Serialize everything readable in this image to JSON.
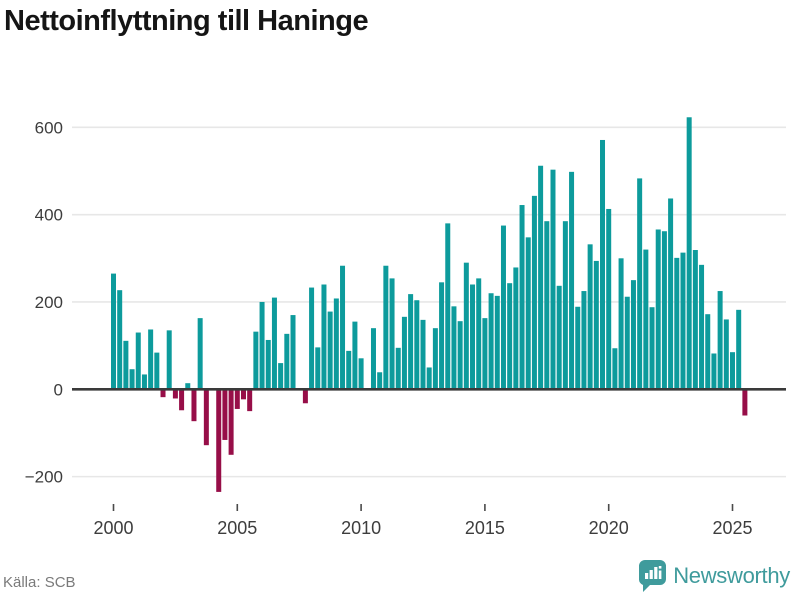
{
  "header": {
    "title": "Nettoinflyttning till Haninge"
  },
  "footer": {
    "source": "Källa: SCB",
    "brand": "Newsworthy"
  },
  "colors": {
    "positive": "#0d9b9c",
    "negative": "#970e48",
    "grid": "#e7e7e7",
    "axis": "#3a3a3a",
    "brand_teal": "#3f9b9c",
    "tick_text": "#3d3d3d",
    "source_text": "#7a7a7a",
    "title_text": "#151515"
  },
  "chart_data": {
    "type": "bar",
    "title": "Nettoinflyttning till Haninge",
    "xlabel": "",
    "ylabel": "",
    "grid": "horizontal",
    "legend": "none",
    "ylim": [
      -260,
      660
    ],
    "y_tick_values": [
      600,
      400,
      200,
      0,
      -200
    ],
    "y_tick_labels": [
      "600",
      "400",
      "200",
      "0",
      "−200"
    ],
    "x_tick_years": [
      "2000",
      "2005",
      "2010",
      "2015",
      "2020",
      "2025"
    ],
    "quarters": [
      "2000Q1",
      "2000Q2",
      "2000Q3",
      "2000Q4",
      "2001Q1",
      "2001Q2",
      "2001Q3",
      "2001Q4",
      "2002Q1",
      "2002Q2",
      "2002Q3",
      "2002Q4",
      "2003Q1",
      "2003Q2",
      "2003Q3",
      "2003Q4",
      "2004Q1",
      "2004Q2",
      "2004Q3",
      "2004Q4",
      "2005Q1",
      "2005Q2",
      "2005Q3",
      "2005Q4",
      "2006Q1",
      "2006Q2",
      "2006Q3",
      "2006Q4",
      "2007Q1",
      "2007Q2",
      "2007Q3",
      "2007Q4",
      "2008Q1",
      "2008Q2",
      "2008Q3",
      "2008Q4",
      "2009Q1",
      "2009Q2",
      "2009Q3",
      "2009Q4",
      "2010Q1",
      "2010Q2",
      "2010Q3",
      "2010Q4",
      "2011Q1",
      "2011Q2",
      "2011Q3",
      "2011Q4",
      "2012Q1",
      "2012Q2",
      "2012Q3",
      "2012Q4",
      "2013Q1",
      "2013Q2",
      "2013Q3",
      "2013Q4",
      "2014Q1",
      "2014Q2",
      "2014Q3",
      "2014Q4",
      "2015Q1",
      "2015Q2",
      "2015Q3",
      "2015Q4",
      "2016Q1",
      "2016Q2",
      "2016Q3",
      "2016Q4",
      "2017Q1",
      "2017Q2",
      "2017Q3",
      "2017Q4",
      "2018Q1",
      "2018Q2",
      "2018Q3",
      "2018Q4",
      "2019Q1",
      "2019Q2",
      "2019Q3",
      "2019Q4",
      "2020Q1",
      "2020Q2",
      "2020Q3",
      "2020Q4",
      "2021Q1",
      "2021Q2",
      "2021Q3",
      "2021Q4",
      "2022Q1",
      "2022Q2",
      "2022Q3",
      "2022Q4",
      "2023Q1",
      "2023Q2",
      "2023Q3",
      "2023Q4",
      "2024Q1",
      "2024Q2",
      "2024Q3",
      "2024Q4",
      "2025Q1",
      "2025Q2",
      "2025Q3"
    ],
    "values": [
      265,
      227,
      111,
      46,
      130,
      34,
      137,
      84,
      -18,
      135,
      -21,
      -48,
      14,
      -73,
      163,
      -128,
      0,
      -235,
      -116,
      -150,
      -45,
      -23,
      -50,
      132,
      200,
      113,
      210,
      60,
      127,
      170,
      0,
      -32,
      233,
      96,
      240,
      178,
      208,
      283,
      88,
      155,
      71,
      0,
      140,
      39,
      283,
      254,
      95,
      166,
      218,
      204,
      159,
      50,
      140,
      245,
      380,
      190,
      156,
      290,
      240,
      254,
      163,
      220,
      214,
      375,
      243,
      279,
      422,
      348,
      443,
      512,
      385,
      503,
      237,
      385,
      498,
      189,
      225,
      332,
      294,
      571,
      413,
      94,
      300,
      212,
      250,
      483,
      320,
      188,
      366,
      362,
      437,
      301,
      313,
      623,
      319,
      285,
      172,
      82,
      225,
      160,
      85,
      182,
      -60
    ]
  }
}
